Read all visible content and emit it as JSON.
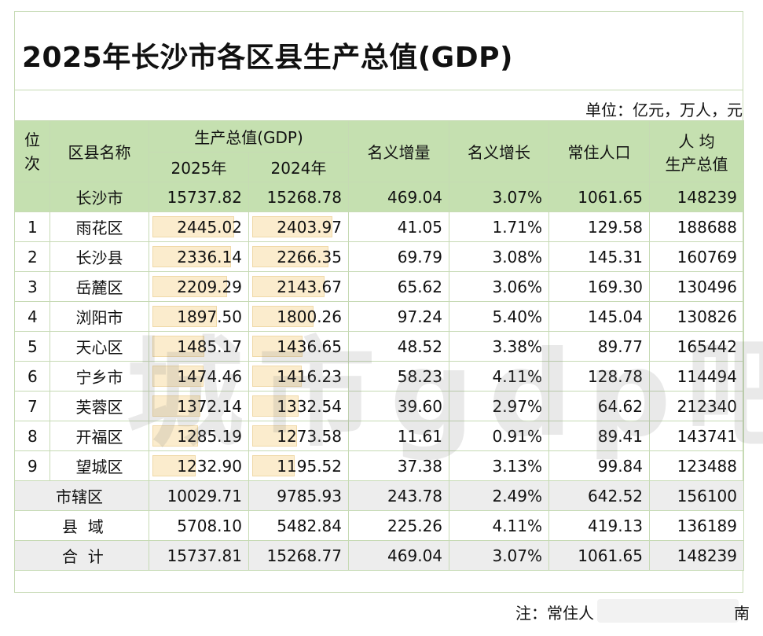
{
  "title": "2025年长沙市各区县生产总值(GDP)",
  "unit": "单位：亿元，万人，元",
  "header": {
    "rank": "位\n次",
    "name": "区县名称",
    "gdp": "生产总值(GDP)",
    "y2025": "2025年",
    "y2024": "2024年",
    "increase": "名义增量",
    "growth": "名义增长",
    "population": "常住人口",
    "per_capita_1": "人  均",
    "per_capita_2": "生产总值"
  },
  "total_row": {
    "name": "长沙市",
    "gdp2025": "15737.82",
    "gdp2024": "15268.78",
    "increase": "469.04",
    "growth": "3.07%",
    "population": "1061.65",
    "per_capita": "148239"
  },
  "rows": [
    {
      "rank": "1",
      "name": "雨花区",
      "gdp2025": "2445.02",
      "gdp2024": "2403.97",
      "increase": "41.05",
      "growth": "1.71%",
      "population": "129.58",
      "per_capita": "188688"
    },
    {
      "rank": "2",
      "name": "长沙县",
      "gdp2025": "2336.14",
      "gdp2024": "2266.35",
      "increase": "69.79",
      "growth": "3.08%",
      "population": "145.31",
      "per_capita": "160769"
    },
    {
      "rank": "3",
      "name": "岳麓区",
      "gdp2025": "2209.29",
      "gdp2024": "2143.67",
      "increase": "65.62",
      "growth": "3.06%",
      "population": "169.30",
      "per_capita": "130496"
    },
    {
      "rank": "4",
      "name": "浏阳市",
      "gdp2025": "1897.50",
      "gdp2024": "1800.26",
      "increase": "97.24",
      "growth": "5.40%",
      "population": "145.04",
      "per_capita": "130826"
    },
    {
      "rank": "5",
      "name": "天心区",
      "gdp2025": "1485.17",
      "gdp2024": "1436.65",
      "increase": "48.52",
      "growth": "3.38%",
      "population": "89.77",
      "per_capita": "165442"
    },
    {
      "rank": "6",
      "name": "宁乡市",
      "gdp2025": "1474.46",
      "gdp2024": "1416.23",
      "increase": "58.23",
      "growth": "4.11%",
      "population": "128.78",
      "per_capita": "114494"
    },
    {
      "rank": "7",
      "name": "芙蓉区",
      "gdp2025": "1372.14",
      "gdp2024": "1332.54",
      "increase": "39.60",
      "growth": "2.97%",
      "population": "64.62",
      "per_capita": "212340"
    },
    {
      "rank": "8",
      "name": "开福区",
      "gdp2025": "1285.19",
      "gdp2024": "1273.58",
      "increase": "11.61",
      "growth": "0.91%",
      "population": "89.41",
      "per_capita": "143741"
    },
    {
      "rank": "9",
      "name": "望城区",
      "gdp2025": "1232.90",
      "gdp2024": "1195.52",
      "increase": "37.38",
      "growth": "3.13%",
      "population": "99.84",
      "per_capita": "123488"
    }
  ],
  "summary_rows": [
    {
      "name": "市辖区",
      "gdp2025": "10029.71",
      "gdp2024": "9785.93",
      "increase": "243.78",
      "growth": "2.49%",
      "population": "642.52",
      "per_capita": "156100"
    },
    {
      "name": "县  域",
      "gdp2025": "5708.10",
      "gdp2024": "5482.84",
      "increase": "225.26",
      "growth": "4.11%",
      "population": "419.13",
      "per_capita": "136189"
    },
    {
      "name": "合  计",
      "gdp2025": "15737.81",
      "gdp2024": "15268.77",
      "increase": "469.04",
      "growth": "3.07%",
      "population": "1061.65",
      "per_capita": "148239"
    }
  ],
  "watermark": "城市gdp吧",
  "note": "注：常住人",
  "note_tail": "南",
  "colors": {
    "header_bg": "#c5e0b0",
    "border": "#c6dab4",
    "bar_fill": "#fbeccd",
    "summary_bg": "#ededed"
  }
}
